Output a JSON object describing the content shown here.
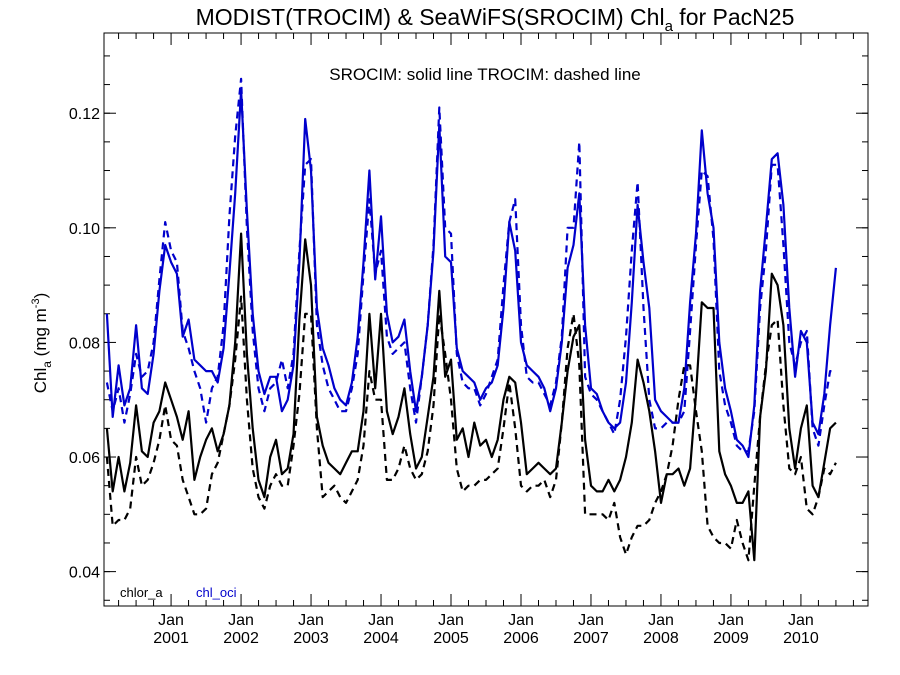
{
  "chart_data": {
    "type": "line",
    "title": {
      "prefix": "MODIST(TROCIM) & SeaWiFS(SROCIM)  Chl",
      "sub": "a",
      "suffix": " for PacN25"
    },
    "annotation": "SROCIM: solid line   TROCIM: dashed line",
    "ylabel": {
      "prefix": "Chl",
      "sub": "a",
      "mid": " (mg m",
      "sup": "-3",
      "suffix": ")"
    },
    "xlim": [
      "2000-02",
      "2010-12"
    ],
    "ylim": [
      0.034,
      0.134
    ],
    "yticks": [
      0.04,
      0.06,
      0.08,
      0.1,
      0.12
    ],
    "ytick_labels": [
      "0.04",
      "0.06",
      "0.08",
      "0.10",
      "0.12"
    ],
    "xticks": [
      "2001-01",
      "2002-01",
      "2003-01",
      "2004-01",
      "2005-01",
      "2006-01",
      "2007-01",
      "2008-01",
      "2009-01",
      "2010-01"
    ],
    "xtick_labels_top": [
      "Jan",
      "Jan",
      "Jan",
      "Jan",
      "Jan",
      "Jan",
      "Jan",
      "Jan",
      "Jan",
      "Jan"
    ],
    "xtick_labels_bottom": [
      "2001",
      "2002",
      "2003",
      "2004",
      "2005",
      "2006",
      "2007",
      "2008",
      "2009",
      "2010"
    ],
    "legend": [
      {
        "label": "chlor_a",
        "color": "#000000"
      },
      {
        "label": "chl_oci",
        "color": "#0000cc"
      }
    ],
    "x_start": "2000-02",
    "series": [
      {
        "product": "chl_oci",
        "sensor": "SROCIM",
        "style": "solid",
        "color": "#0000cc",
        "values": [
          0.085,
          0.067,
          0.076,
          0.069,
          0.072,
          0.083,
          0.072,
          0.071,
          0.078,
          0.089,
          0.097,
          0.094,
          0.092,
          0.081,
          0.084,
          0.077,
          0.076,
          0.075,
          0.075,
          0.073,
          0.079,
          0.092,
          0.106,
          0.124,
          0.103,
          0.085,
          0.075,
          0.071,
          0.074,
          0.074,
          0.068,
          0.07,
          0.076,
          0.094,
          0.119,
          0.11,
          0.086,
          0.079,
          0.076,
          0.072,
          0.07,
          0.069,
          0.073,
          0.081,
          0.094,
          0.11,
          0.091,
          0.102,
          0.085,
          0.08,
          0.081,
          0.084,
          0.075,
          0.068,
          0.074,
          0.083,
          0.096,
          0.118,
          0.095,
          0.094,
          0.079,
          0.075,
          0.074,
          0.073,
          0.07,
          0.072,
          0.073,
          0.076,
          0.086,
          0.101,
          0.096,
          0.08,
          0.076,
          0.075,
          0.074,
          0.072,
          0.068,
          0.072,
          0.08,
          0.093,
          0.097,
          0.106,
          0.083,
          0.072,
          0.071,
          0.068,
          0.066,
          0.065,
          0.066,
          0.073,
          0.087,
          0.104,
          0.094,
          0.086,
          0.07,
          0.068,
          0.067,
          0.066,
          0.066,
          0.072,
          0.087,
          0.099,
          0.117,
          0.106,
          0.1,
          0.08,
          0.072,
          0.068,
          0.063,
          0.062,
          0.06,
          0.069,
          0.089,
          0.1,
          0.112,
          0.113,
          0.104,
          0.086,
          0.074,
          0.082,
          0.08,
          0.066,
          0.064,
          0.071,
          0.083,
          0.093
        ]
      },
      {
        "product": "chl_oci",
        "sensor": "TROCIM",
        "style": "dashed",
        "color": "#0000cc",
        "values": [
          0.073,
          0.068,
          0.072,
          0.066,
          0.071,
          0.078,
          0.074,
          0.075,
          0.08,
          0.091,
          0.101,
          0.096,
          0.094,
          0.082,
          0.079,
          0.075,
          0.072,
          0.066,
          0.072,
          0.074,
          0.083,
          0.102,
          0.116,
          0.126,
          0.1,
          0.082,
          0.072,
          0.068,
          0.072,
          0.073,
          0.077,
          0.072,
          0.078,
          0.096,
          0.111,
          0.112,
          0.083,
          0.076,
          0.072,
          0.07,
          0.068,
          0.068,
          0.072,
          0.078,
          0.092,
          0.105,
          0.092,
          0.096,
          0.081,
          0.078,
          0.079,
          0.08,
          0.072,
          0.066,
          0.074,
          0.083,
          0.097,
          0.121,
          0.1,
          0.099,
          0.078,
          0.073,
          0.072,
          0.072,
          0.069,
          0.071,
          0.074,
          0.077,
          0.09,
          0.101,
          0.105,
          0.083,
          0.074,
          0.073,
          0.073,
          0.071,
          0.069,
          0.073,
          0.081,
          0.1,
          0.1,
          0.115,
          0.074,
          0.071,
          0.07,
          0.068,
          0.066,
          0.064,
          0.07,
          0.081,
          0.096,
          0.108,
          0.086,
          0.07,
          0.065,
          0.065,
          0.066,
          0.066,
          0.066,
          0.068,
          0.082,
          0.097,
          0.11,
          0.109,
          0.098,
          0.075,
          0.069,
          0.066,
          0.062,
          0.061,
          0.061,
          0.068,
          0.086,
          0.096,
          0.111,
          0.111,
          0.097,
          0.08,
          0.076,
          0.08,
          0.082,
          0.065,
          0.062,
          0.069,
          0.075,
          0.075
        ]
      },
      {
        "product": "chlor_a",
        "sensor": "SROCIM",
        "style": "solid",
        "color": "#000000",
        "values": [
          0.065,
          0.054,
          0.06,
          0.054,
          0.059,
          0.069,
          0.061,
          0.06,
          0.066,
          0.068,
          0.073,
          0.07,
          0.067,
          0.063,
          0.068,
          0.056,
          0.06,
          0.063,
          0.065,
          0.061,
          0.064,
          0.069,
          0.08,
          0.099,
          0.078,
          0.065,
          0.056,
          0.053,
          0.06,
          0.063,
          0.057,
          0.058,
          0.064,
          0.084,
          0.098,
          0.09,
          0.067,
          0.062,
          0.059,
          0.058,
          0.057,
          0.059,
          0.061,
          0.061,
          0.068,
          0.085,
          0.072,
          0.085,
          0.068,
          0.064,
          0.067,
          0.072,
          0.064,
          0.058,
          0.06,
          0.067,
          0.074,
          0.089,
          0.074,
          0.077,
          0.063,
          0.065,
          0.06,
          0.066,
          0.062,
          0.063,
          0.06,
          0.063,
          0.07,
          0.074,
          0.073,
          0.066,
          0.057,
          0.058,
          0.059,
          0.058,
          0.057,
          0.058,
          0.066,
          0.075,
          0.081,
          0.083,
          0.063,
          0.055,
          0.054,
          0.054,
          0.056,
          0.054,
          0.056,
          0.06,
          0.066,
          0.077,
          0.073,
          0.068,
          0.061,
          0.052,
          0.057,
          0.057,
          0.058,
          0.055,
          0.058,
          0.071,
          0.087,
          0.086,
          0.086,
          0.061,
          0.057,
          0.055,
          0.052,
          0.052,
          0.054,
          0.042,
          0.067,
          0.075,
          0.092,
          0.09,
          0.083,
          0.065,
          0.058,
          0.065,
          0.069,
          0.055,
          0.053,
          0.059,
          0.065,
          0.066
        ]
      },
      {
        "product": "chlor_a",
        "sensor": "TROCIM",
        "style": "dashed",
        "color": "#000000",
        "values": [
          0.06,
          0.048,
          0.049,
          0.049,
          0.051,
          0.06,
          0.055,
          0.056,
          0.059,
          0.063,
          0.069,
          0.063,
          0.062,
          0.056,
          0.053,
          0.05,
          0.05,
          0.051,
          0.057,
          0.059,
          0.064,
          0.069,
          0.077,
          0.088,
          0.07,
          0.058,
          0.053,
          0.051,
          0.055,
          0.057,
          0.055,
          0.055,
          0.062,
          0.071,
          0.085,
          0.085,
          0.065,
          0.053,
          0.054,
          0.055,
          0.053,
          0.052,
          0.054,
          0.056,
          0.062,
          0.075,
          0.07,
          0.07,
          0.056,
          0.056,
          0.058,
          0.062,
          0.058,
          0.056,
          0.057,
          0.061,
          0.069,
          0.085,
          0.078,
          0.07,
          0.058,
          0.054,
          0.055,
          0.055,
          0.056,
          0.056,
          0.057,
          0.058,
          0.065,
          0.073,
          0.065,
          0.055,
          0.054,
          0.055,
          0.055,
          0.056,
          0.053,
          0.056,
          0.066,
          0.079,
          0.085,
          0.076,
          0.05,
          0.05,
          0.05,
          0.05,
          0.049,
          0.052,
          0.046,
          0.043,
          0.046,
          0.048,
          0.048,
          0.049,
          0.052,
          0.054,
          0.057,
          0.062,
          0.07,
          0.076,
          0.076,
          0.068,
          0.061,
          0.048,
          0.046,
          0.045,
          0.045,
          0.044,
          0.049,
          0.045,
          0.042,
          0.055,
          0.067,
          0.076,
          0.083,
          0.084,
          0.069,
          0.058,
          0.057,
          0.06,
          0.051,
          0.05,
          0.053,
          0.058,
          0.057,
          0.059
        ]
      }
    ]
  }
}
